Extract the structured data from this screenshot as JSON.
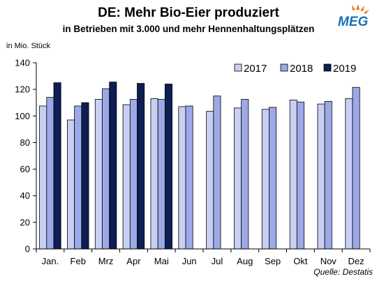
{
  "header": {
    "title": "DE: Mehr Bio-Eier produziert",
    "subtitle": "in Betrieben mit 3.000 und mehr Hennenhaltungsplätzen",
    "unit": "in Mio. Stück"
  },
  "logo": {
    "text": "MEG",
    "icon": "sunburst-logo",
    "color": "#1a6fb5",
    "accent": "#f07a1a"
  },
  "source": "Quelle: Destatis",
  "chart_data": {
    "type": "bar",
    "categories": [
      "Jan.",
      "Feb",
      "Mrz",
      "Apr",
      "Mai",
      "Jun",
      "Jul",
      "Aug",
      "Sep",
      "Okt",
      "Nov",
      "Dez"
    ],
    "series": [
      {
        "name": "2017",
        "color": "#c7cff3",
        "values": [
          107.5,
          97.0,
          112.5,
          108.5,
          113.0,
          107.0,
          103.5,
          106.0,
          105.0,
          112.0,
          109.0,
          113.0
        ]
      },
      {
        "name": "2018",
        "color": "#9da9e6",
        "values": [
          114.0,
          107.5,
          120.5,
          112.5,
          112.5,
          107.5,
          115.0,
          112.5,
          106.5,
          110.5,
          111.0,
          121.5
        ]
      },
      {
        "name": "2019",
        "color": "#0d1e55",
        "values": [
          125.0,
          110.0,
          125.5,
          124.5,
          124.0,
          null,
          null,
          null,
          null,
          null,
          null,
          null
        ]
      }
    ],
    "ylim": [
      0,
      140
    ],
    "yticks": [
      0,
      20,
      40,
      60,
      80,
      100,
      120,
      140
    ],
    "grid": false,
    "legend": "top-right"
  }
}
